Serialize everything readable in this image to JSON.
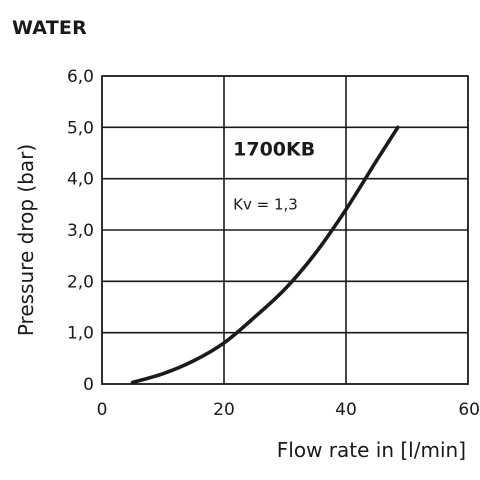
{
  "figure": {
    "title": "WATER"
  },
  "chart_data": {
    "type": "line",
    "title": "WATER",
    "xlabel": "Flow rate in [l/min]",
    "ylabel": "Pressure drop (bar)",
    "xlim": [
      0,
      60
    ],
    "ylim": [
      0,
      6
    ],
    "x_ticks": [
      0,
      20,
      40,
      60
    ],
    "x_tick_labels": [
      "0",
      "20",
      "40",
      "60"
    ],
    "y_ticks": [
      0,
      1,
      2,
      3,
      4,
      5,
      6
    ],
    "y_tick_labels": [
      "0",
      "1,0",
      "2,0",
      "3,0",
      "4,0",
      "5,0",
      "6,0"
    ],
    "grid": true,
    "series": [
      {
        "name": "1700KB",
        "x": [
          5,
          10,
          15,
          20,
          25,
          30,
          35,
          40,
          45,
          48.5
        ],
        "y": [
          0.03,
          0.2,
          0.45,
          0.8,
          1.3,
          1.85,
          2.55,
          3.4,
          4.35,
          5.0
        ]
      }
    ],
    "annotations": [
      {
        "text": "1700KB",
        "x": 21.5,
        "y": 4.45,
        "style": "bold"
      },
      {
        "text": "Kv = 1,3",
        "x": 21.5,
        "y": 3.4,
        "style": "normal"
      }
    ]
  }
}
